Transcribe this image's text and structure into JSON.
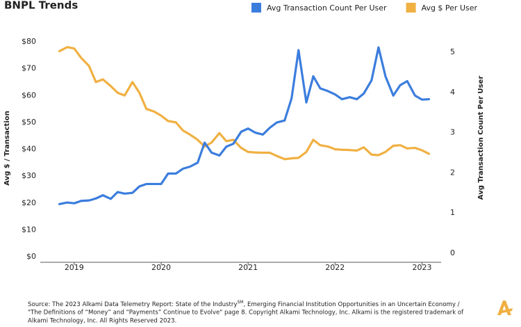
{
  "chart_data": {
    "type": "line",
    "title": "BNPL Trends",
    "y_label": "Avg $ / Transaction",
    "y2_label": "Avg Transaction Count Per User",
    "legend": "top-right",
    "grid": false,
    "x": [
      2018.83,
      2018.92,
      2019.0,
      2019.08,
      2019.17,
      2019.25,
      2019.33,
      2019.42,
      2019.5,
      2019.58,
      2019.67,
      2019.75,
      2019.83,
      2019.92,
      2020.0,
      2020.08,
      2020.17,
      2020.25,
      2020.33,
      2020.42,
      2020.5,
      2020.58,
      2020.67,
      2020.75,
      2020.83,
      2020.92,
      2021.0,
      2021.08,
      2021.17,
      2021.25,
      2021.33,
      2021.42,
      2021.5,
      2021.58,
      2021.67,
      2021.75,
      2021.83,
      2021.92,
      2022.0,
      2022.08,
      2022.17,
      2022.25,
      2022.33,
      2022.42,
      2022.5,
      2022.58,
      2022.67,
      2022.75,
      2022.83,
      2022.92,
      2023.0,
      2023.08
    ],
    "xlim": [
      2018.61,
      2023.22
    ],
    "xticks": [
      2019,
      2020,
      2021,
      2022,
      2023
    ],
    "ylim": [
      0,
      80
    ],
    "yticks": [
      {
        "value": 0,
        "label": "$0"
      },
      {
        "value": 10,
        "label": "$10"
      },
      {
        "value": 20,
        "label": "$20"
      },
      {
        "value": 30,
        "label": "$30"
      },
      {
        "value": 40,
        "label": "$40"
      },
      {
        "value": 50,
        "label": "$50"
      },
      {
        "value": 60,
        "label": "$60"
      },
      {
        "value": 70,
        "label": "$70"
      },
      {
        "value": 80,
        "label": "$80"
      }
    ],
    "y2lim": [
      -0.09,
      5.26
    ],
    "y2ticks": [
      0,
      1,
      2,
      3,
      4,
      5
    ],
    "series": [
      {
        "name": "Avg Transaction Count Per User",
        "color": "#3b7ddd",
        "axis": "y2",
        "values": [
          1.22,
          1.26,
          1.24,
          1.3,
          1.31,
          1.36,
          1.44,
          1.35,
          1.52,
          1.48,
          1.5,
          1.66,
          1.72,
          1.72,
          1.72,
          1.98,
          1.98,
          2.1,
          2.15,
          2.25,
          2.75,
          2.5,
          2.43,
          2.65,
          2.72,
          3.02,
          3.1,
          3.0,
          2.95,
          3.12,
          3.25,
          3.3,
          3.85,
          5.05,
          3.75,
          4.4,
          4.1,
          4.03,
          3.95,
          3.83,
          3.88,
          3.83,
          3.97,
          4.3,
          5.12,
          4.4,
          3.92,
          4.18,
          4.28,
          3.92,
          3.82,
          3.83
        ]
      },
      {
        "name": "Avg $ Per User",
        "color": "#f0b042",
        "values": [
          76.5,
          78,
          77.5,
          74,
          71,
          65,
          66,
          63.5,
          61,
          60,
          65,
          61,
          55,
          54,
          52.5,
          50.5,
          50,
          47,
          45.5,
          43.5,
          41,
          42.5,
          46,
          43,
          43.5,
          40.5,
          39,
          38.8,
          38.7,
          38.7,
          37.5,
          36.3,
          36.6,
          36.8,
          39,
          43.5,
          41.5,
          41,
          40,
          39.8,
          39.7,
          39.5,
          40.7,
          38,
          37.8,
          39,
          41.3,
          41.5,
          40.3,
          40.5,
          39.6,
          38.3
        ]
      }
    ],
    "footnote": [
      "Source: The 2023 Alkami Data Telemetry Report: State of the Industry",
      "SM",
      ", Emerging Financial Institution Opportunities in an Uncertain Economy  /",
      "\"The Definitions of “Money” and “Payments” Continue to Evolve\" page 8. Copyright Alkami Technology, Inc. Alkami is the registered trademark of",
      "Alkami Technology, Inc. All Rights Reserved 2023."
    ]
  }
}
